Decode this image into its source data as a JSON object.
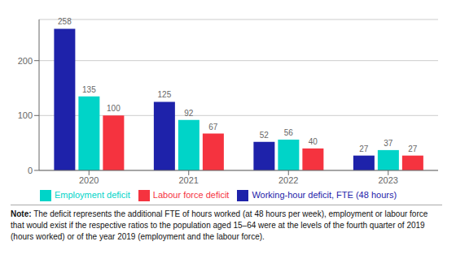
{
  "chart_data": {
    "type": "bar",
    "categories": [
      "2020",
      "2021",
      "2022",
      "2023"
    ],
    "series": [
      {
        "name": "Working-hour deficit, FTE (48 hours)",
        "color": "#1e22aa",
        "values": [
          258,
          125,
          52,
          27
        ]
      },
      {
        "name": "Employment deficit",
        "color": "#00d4c8",
        "values": [
          135,
          92,
          56,
          37
        ]
      },
      {
        "name": "Labour force deficit",
        "color": "#f5333f",
        "values": [
          100,
          67,
          40,
          27
        ]
      }
    ],
    "ylim": [
      0,
      275
    ],
    "yticks": [
      0,
      100,
      200
    ],
    "grid": true,
    "legend": "bottom",
    "data_labels": true,
    "annotations": [
      "Note: The deficit represents the additional FTE of hours worked (at 48 hours per week), employment or labour force that would exist if the respective ratios to the population aged 15–64 were at the levels of the fourth quarter of 2019 (hours worked) or of the year 2019 (employment and the labour force)."
    ]
  }
}
